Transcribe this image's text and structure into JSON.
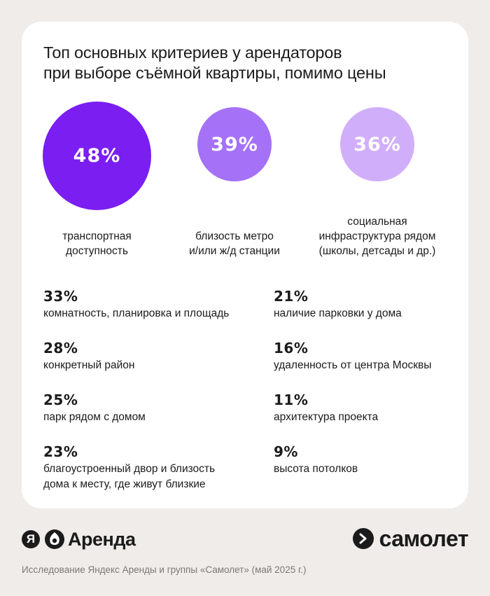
{
  "title_lines": [
    "Топ основных критериев у арендаторов",
    "при выборе съёмной квартиры, помимо цены"
  ],
  "colors": {
    "background": "#f0ecea",
    "card": "#ffffff",
    "circle_1": "#7a1ef2",
    "circle_2": "#a471f7",
    "circle_3": "#d1aef9",
    "text": "#1b1b1b",
    "source_text": "#7d7875"
  },
  "chart_data": {
    "type": "bubble",
    "items": [
      {
        "value": 48,
        "label": "48%",
        "label_lines": [
          "транспортная",
          "доступность"
        ]
      },
      {
        "value": 39,
        "label": "39%",
        "label_lines": [
          "близость метро",
          "и/или ж/д станции"
        ]
      },
      {
        "value": 36,
        "label": "36%",
        "label_lines": [
          "социальная",
          "инфраструктура рядом",
          "(школы, детсады и др.)"
        ]
      },
      {
        "value": 33,
        "label": "33%",
        "label_lines": [
          "комнатность, планировка и площадь"
        ]
      },
      {
        "value": 28,
        "label": "28%",
        "label_lines": [
          "конкретный район"
        ]
      },
      {
        "value": 25,
        "label": "25%",
        "label_lines": [
          "парк рядом с домом"
        ]
      },
      {
        "value": 23,
        "label": "23%",
        "label_lines": [
          "благоустроенный двор и  близость",
          "дома к месту, где живут близкие"
        ]
      },
      {
        "value": 21,
        "label": "21%",
        "label_lines": [
          "наличие парковки у дома"
        ]
      },
      {
        "value": 16,
        "label": "16%",
        "label_lines": [
          "удаленность от центра Москвы"
        ]
      },
      {
        "value": 11,
        "label": "11%",
        "label_lines": [
          "архитектура проекта"
        ]
      },
      {
        "value": 9,
        "label": "9%",
        "label_lines": [
          "высота потолков"
        ]
      }
    ]
  },
  "footer": {
    "ya_logo_letter": "Я",
    "arenda_text": "Аренда",
    "samolet_text": "самолет",
    "source": "Исследование Яндекс Аренды и группы «Самолет» (май 2025 г.)"
  },
  "icons": [
    "yandex-logo-icon",
    "arenda-house-icon",
    "samolet-arrow-icon"
  ]
}
